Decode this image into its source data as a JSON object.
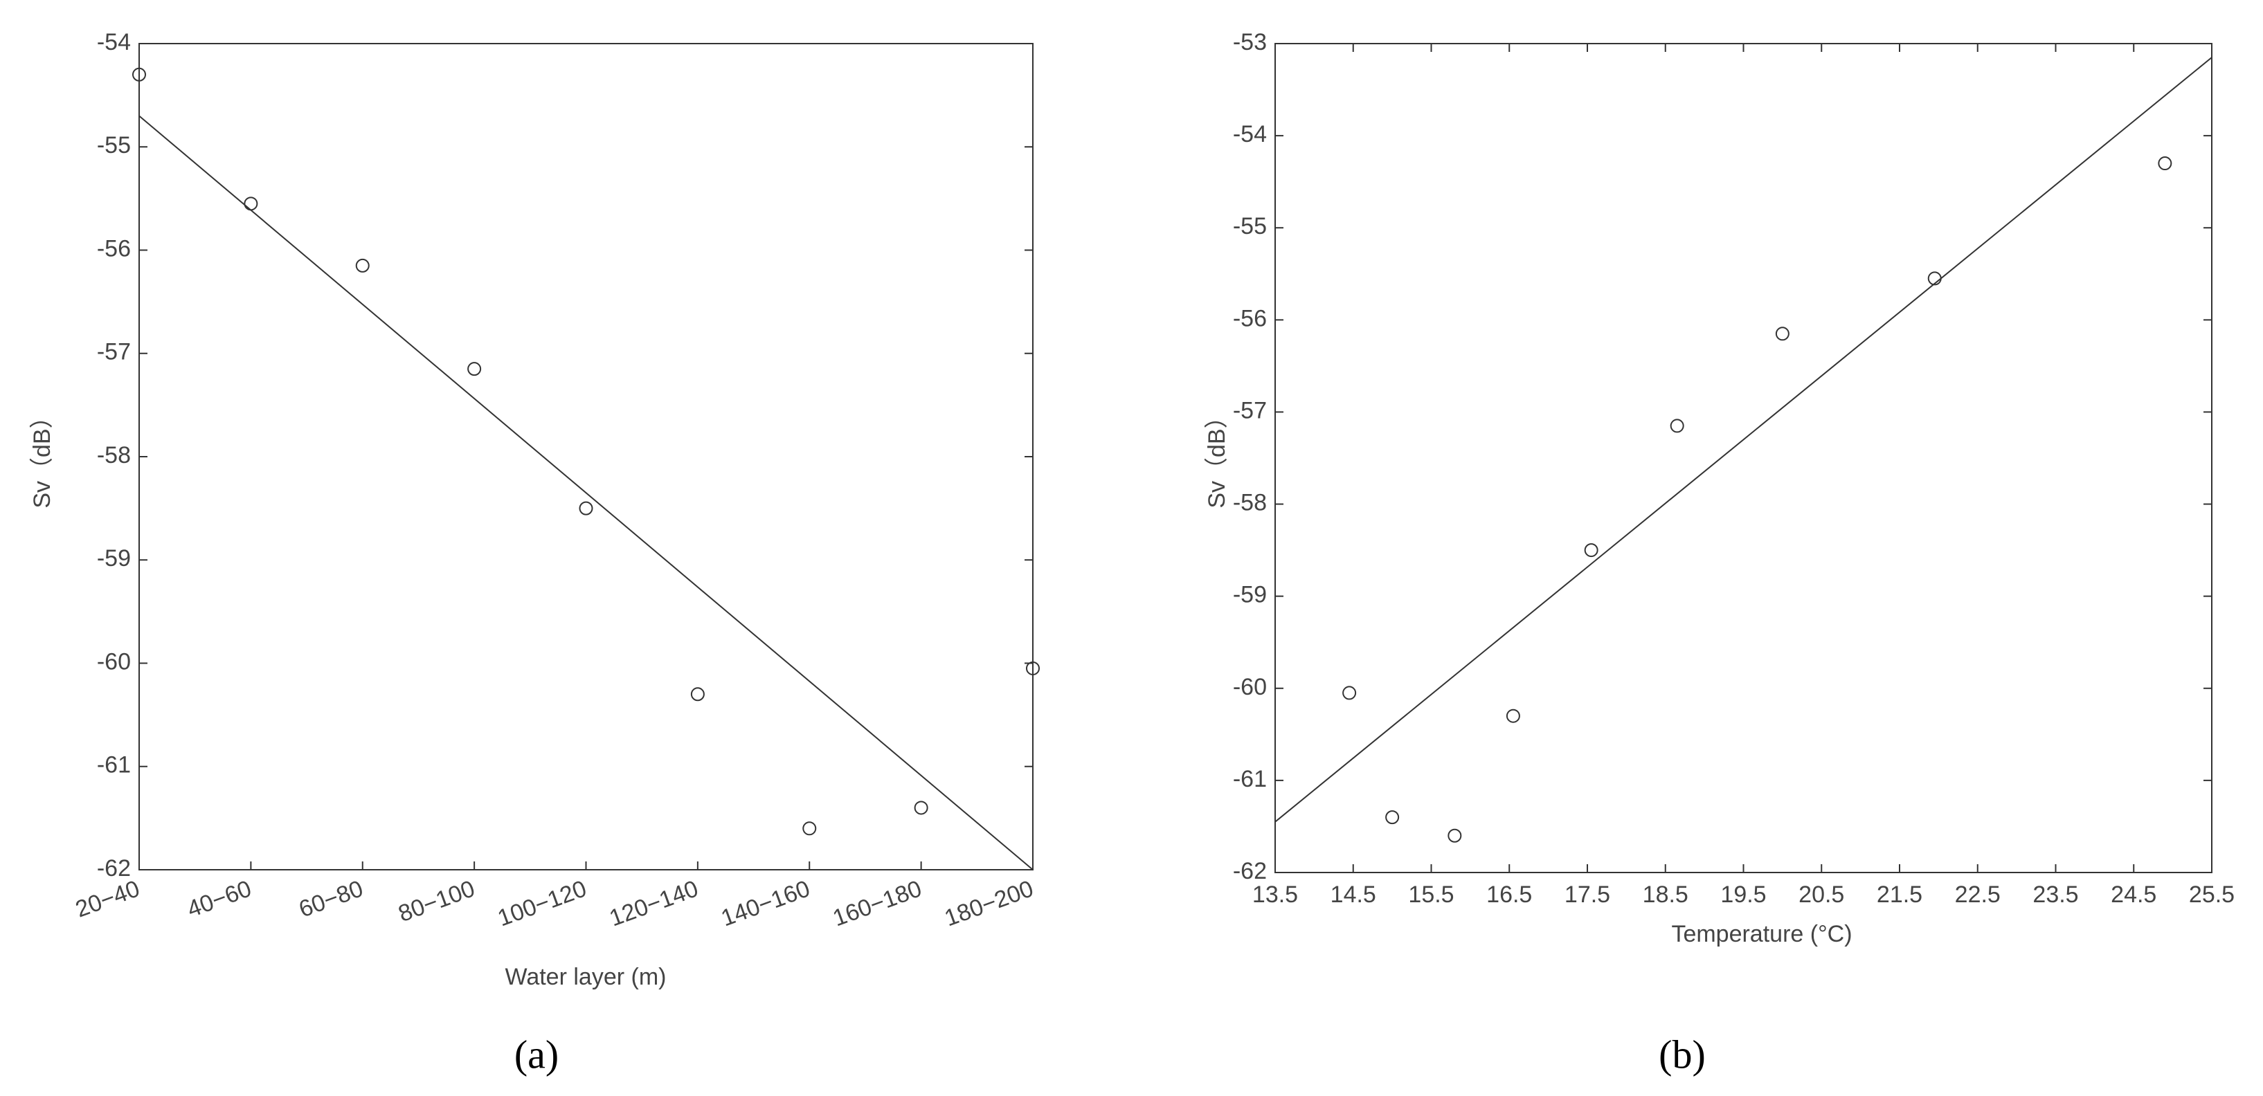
{
  "chart_data": [
    {
      "type": "scatter",
      "caption": "(a)",
      "xlabel": "Water layer (m)",
      "ylabel": "Sv（dB）",
      "categories": [
        "20−40",
        "40−60",
        "60−80",
        "80−100",
        "100−120",
        "120−140",
        "140−160",
        "160−180",
        "180−200"
      ],
      "values": [
        -54.3,
        -55.55,
        -56.15,
        -57.15,
        -58.5,
        -60.3,
        -61.6,
        -61.4,
        -60.05
      ],
      "fit": {
        "values": [
          -54.7,
          -62.0
        ]
      },
      "color": "#333333",
      "ylim": [
        -62,
        -54
      ],
      "yticks": [
        -62,
        -61,
        -60,
        -59,
        -58,
        -57,
        -56,
        -55,
        -54
      ]
    },
    {
      "type": "scatter",
      "caption": "(b)",
      "xlabel": "Temperature (°C)",
      "ylabel": "Sv（dB）",
      "x": [
        14.45,
        15.0,
        15.8,
        16.55,
        17.55,
        18.65,
        20.0,
        21.95,
        24.9
      ],
      "values": [
        -60.05,
        -61.4,
        -61.6,
        -60.3,
        -58.5,
        -57.15,
        -56.15,
        -55.55,
        -54.3
      ],
      "fit": {
        "x": [
          13.5,
          25.5
        ],
        "values": [
          -61.45,
          -53.15
        ]
      },
      "color": "#333333",
      "xlim": [
        13.5,
        25.5
      ],
      "xticks": [
        13.5,
        14.5,
        15.5,
        16.5,
        17.5,
        18.5,
        19.5,
        20.5,
        21.5,
        22.5,
        23.5,
        24.5,
        25.5
      ],
      "ylim": [
        -62,
        -53
      ],
      "yticks": [
        -62,
        -61,
        -60,
        -59,
        -58,
        -57,
        -56,
        -55,
        -54,
        -53
      ]
    }
  ]
}
